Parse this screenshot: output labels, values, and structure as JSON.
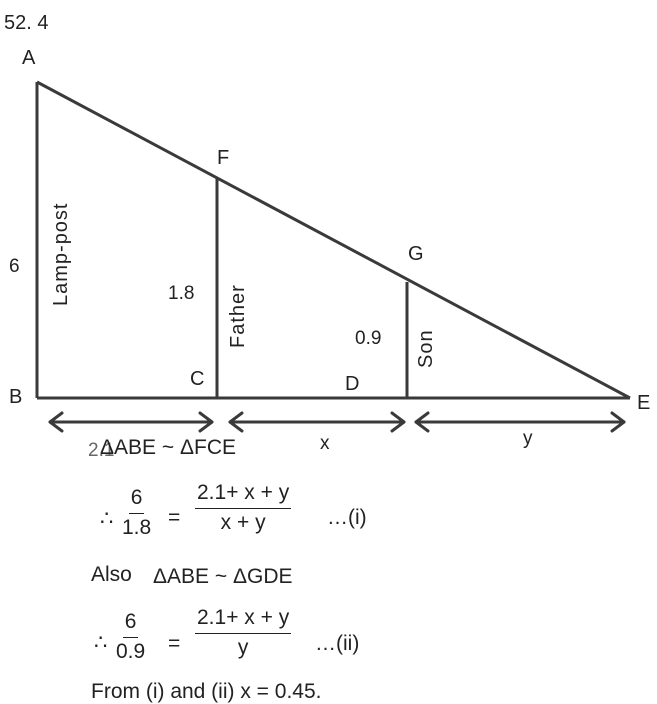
{
  "problem_number": "52. 4",
  "points": {
    "A": "A",
    "B": "B",
    "C": "C",
    "D": "D",
    "E": "E",
    "F": "F",
    "G": "G"
  },
  "labels": {
    "lamp_post": "Lamp-post",
    "father": "Father",
    "son": "Son",
    "height_lamp": "6",
    "height_father": "1.8",
    "height_son": "0.9",
    "dist_bc": "2.1",
    "dist_x": "x",
    "dist_y": "y"
  },
  "solution": {
    "line1": "ΔABE ~ ΔFCE",
    "therefore1": "∴",
    "frac1_num": "6",
    "frac1_den": "1.8",
    "eq1": "=",
    "frac2_num": "2.1+ x + y",
    "frac2_den": "x + y",
    "tag1": "…(i)",
    "also": "Also",
    "line2": "ΔABE ~ ΔGDE",
    "therefore2": "∴",
    "frac3_num": "6",
    "frac3_den": "0.9",
    "eq2": "=",
    "frac4_num": "2.1+ x + y",
    "frac4_den": "y",
    "tag2": "…(ii)",
    "conclusion": "From (i) and (ii) x = 0.45."
  },
  "colors": {
    "stroke": "#3a3a3a"
  }
}
